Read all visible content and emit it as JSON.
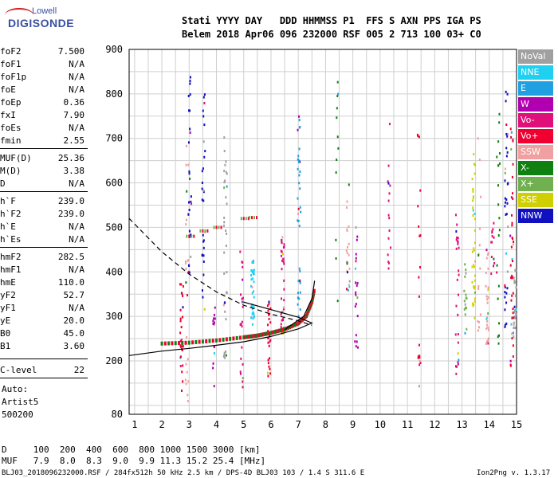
{
  "logo": {
    "line1": "Lowell",
    "line2": "DIGISONDE"
  },
  "header": {
    "line1": "Stati YYYY DAY   DDD HHMMSS P1  FFS S AXN PPS IGA PS",
    "line2": "Belem 2018 Apr06 096 232000 RSF 005 2 713 100 03+ C0"
  },
  "params": [
    {
      "name": "foF2",
      "value": "7.500"
    },
    {
      "name": "foF1",
      "value": "N/A"
    },
    {
      "name": "foF1p",
      "value": "N/A"
    },
    {
      "name": "foE",
      "value": "N/A"
    },
    {
      "name": "foEp",
      "value": "0.36"
    },
    {
      "name": "fxI",
      "value": "7.90"
    },
    {
      "name": "foEs",
      "value": "N/A"
    },
    {
      "name": "fmin",
      "value": "2.55"
    },
    {
      "name": "MUF(D)",
      "value": "25.36"
    },
    {
      "name": "M(D)",
      "value": "3.38"
    },
    {
      "name": "D",
      "value": "N/A"
    },
    {
      "name": "h`F",
      "value": "239.0"
    },
    {
      "name": "h`F2",
      "value": "239.0"
    },
    {
      "name": "h`E",
      "value": "N/A"
    },
    {
      "name": "h`Es",
      "value": "N/A"
    },
    {
      "name": "hmF2",
      "value": "282.5"
    },
    {
      "name": "hmF1",
      "value": "N/A"
    },
    {
      "name": "hmE",
      "value": "110.0"
    },
    {
      "name": "yF2",
      "value": "52.7"
    },
    {
      "name": "yF1",
      "value": "N/A"
    },
    {
      "name": "yE",
      "value": "20.0"
    },
    {
      "name": "B0",
      "value": "45.0"
    },
    {
      "name": "B1",
      "value": "3.60"
    },
    {
      "name": "C-level",
      "value": "22"
    }
  ],
  "auto": {
    "line1": "Auto:",
    "line2": "Artist5",
    "line3": "500200"
  },
  "legend": [
    {
      "label": "NoVal",
      "color": "#a0a0a0"
    },
    {
      "label": "NNE",
      "color": "#20d0f0"
    },
    {
      "label": "E",
      "color": "#20a0e0"
    },
    {
      "label": "W",
      "color": "#b000b0"
    },
    {
      "label": "Vo-",
      "color": "#e0107a"
    },
    {
      "label": "Vo+",
      "color": "#f00030"
    },
    {
      "label": "SSW",
      "color": "#f0a0a0"
    },
    {
      "label": "X-",
      "color": "#108010"
    },
    {
      "label": "X+",
      "color": "#70b050"
    },
    {
      "label": "SSE",
      "color": "#d0d000"
    },
    {
      "label": "NNW",
      "color": "#1010c0"
    }
  ],
  "mufline": {
    "d_line": "D     100  200  400  600  800 1000 1500 3000 [km]",
    "muf_line": "MUF   7.9  8.0  8.3  9.0  9.9 11.3 15.2 25.4 [MHz]"
  },
  "footer": {
    "left": "BLJ03_2018096232000.RSF / 284fx512h 50 kHz 2.5 km / DPS-4D BLJ03 103 / 1.4 S 311.6 E",
    "right": "Ion2Png v. 1.3.17"
  },
  "chart_data": {
    "type": "scatter",
    "xlim": [
      0.8,
      15
    ],
    "ylim": [
      80,
      900
    ],
    "x_ticks": [
      1,
      2,
      3,
      4,
      5,
      6,
      7,
      8,
      9,
      10,
      11,
      12,
      13,
      14,
      15
    ],
    "y_ticks": [
      80,
      200,
      300,
      400,
      500,
      600,
      700,
      800,
      900
    ],
    "grid": true,
    "legend_position": "right",
    "trace_f2": [
      [
        2.0,
        238
      ],
      [
        3.0,
        240
      ],
      [
        4.0,
        245
      ],
      [
        5.0,
        252
      ],
      [
        5.5,
        256
      ],
      [
        6.0,
        262
      ],
      [
        6.5,
        270
      ],
      [
        7.0,
        283
      ],
      [
        7.3,
        300
      ],
      [
        7.5,
        330
      ],
      [
        7.6,
        360
      ]
    ],
    "profile": [
      [
        0.8,
        212
      ],
      [
        2.0,
        222
      ],
      [
        3.0,
        228
      ],
      [
        4.0,
        235
      ],
      [
        5.0,
        243
      ],
      [
        6.0,
        255
      ],
      [
        7.0,
        272
      ],
      [
        7.5,
        285
      ],
      [
        7.0,
        298
      ],
      [
        6.0,
        315
      ],
      [
        5.0,
        332
      ]
    ],
    "secondary": [
      [
        3.0,
        480
      ],
      [
        3.5,
        492
      ],
      [
        4.0,
        500
      ],
      [
        5.0,
        520
      ],
      [
        5.3,
        522
      ]
    ],
    "dashed": [
      [
        0.8,
        520
      ],
      [
        2.0,
        445
      ],
      [
        3.0,
        395
      ],
      [
        4.0,
        355
      ],
      [
        5.0,
        325
      ],
      [
        6.0,
        305
      ],
      [
        7.0,
        290
      ],
      [
        7.5,
        280
      ]
    ],
    "curve2": [
      [
        6.5,
        270
      ],
      [
        7.2,
        300
      ],
      [
        7.5,
        340
      ],
      [
        7.6,
        380
      ]
    ]
  }
}
